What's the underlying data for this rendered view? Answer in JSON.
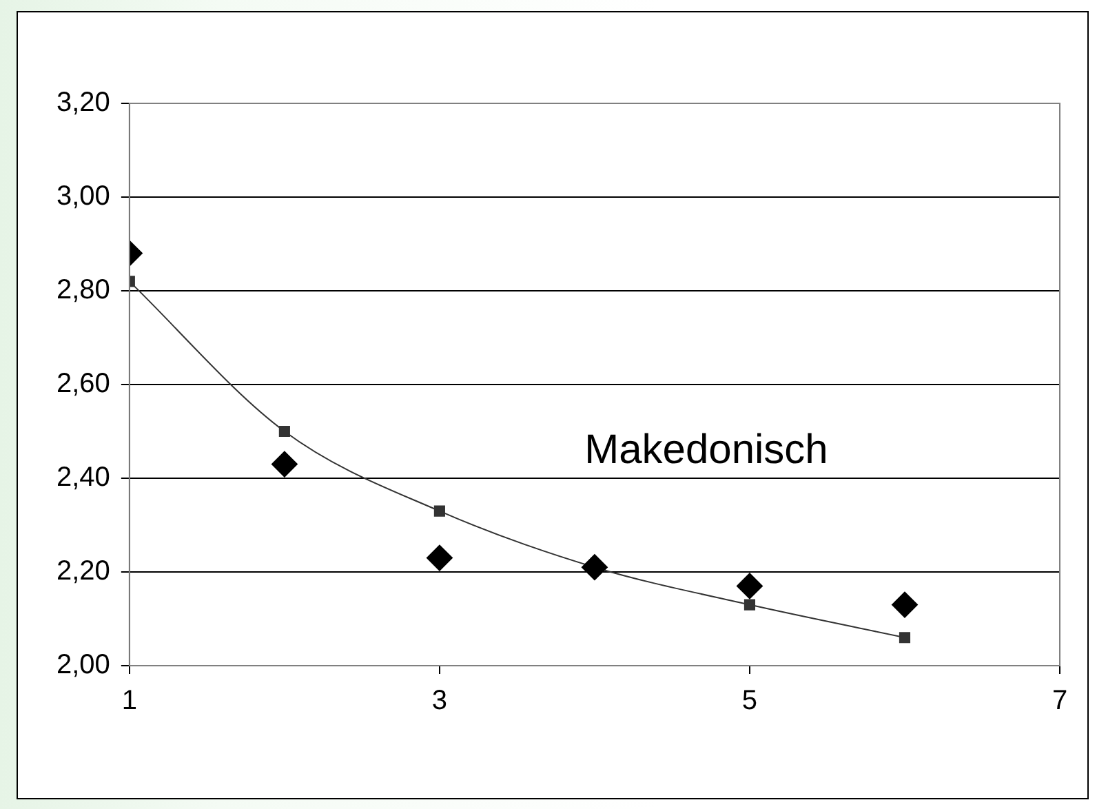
{
  "chart_data": {
    "type": "scatter",
    "x": [
      1,
      2,
      3,
      4,
      5,
      6
    ],
    "series": [
      {
        "type": "scatter",
        "color": "#000000",
        "marker": "diamond",
        "values": [
          2.88,
          2.43,
          2.23,
          2.21,
          2.17,
          2.13
        ]
      },
      {
        "type": "line",
        "color": "#333333",
        "marker": "square",
        "values": [
          2.82,
          2.5,
          2.33,
          2.21,
          2.13,
          2.06
        ]
      }
    ],
    "xlim": [
      1,
      7
    ],
    "xticks": [
      1,
      3,
      5,
      7
    ],
    "ylim": [
      2.0,
      3.2
    ],
    "yticks": [
      {
        "value": 2.0,
        "label": "2,00"
      },
      {
        "value": 2.2,
        "label": "2,20"
      },
      {
        "value": 2.4,
        "label": "2,40"
      },
      {
        "value": 2.6,
        "label": "2,60"
      },
      {
        "value": 2.8,
        "label": "2,80"
      },
      {
        "value": 3.0,
        "label": "3,00"
      },
      {
        "value": 3.2,
        "label": "3,20"
      }
    ],
    "grid": "y",
    "legend": false,
    "annotations": [
      "Makedonisch"
    ]
  }
}
